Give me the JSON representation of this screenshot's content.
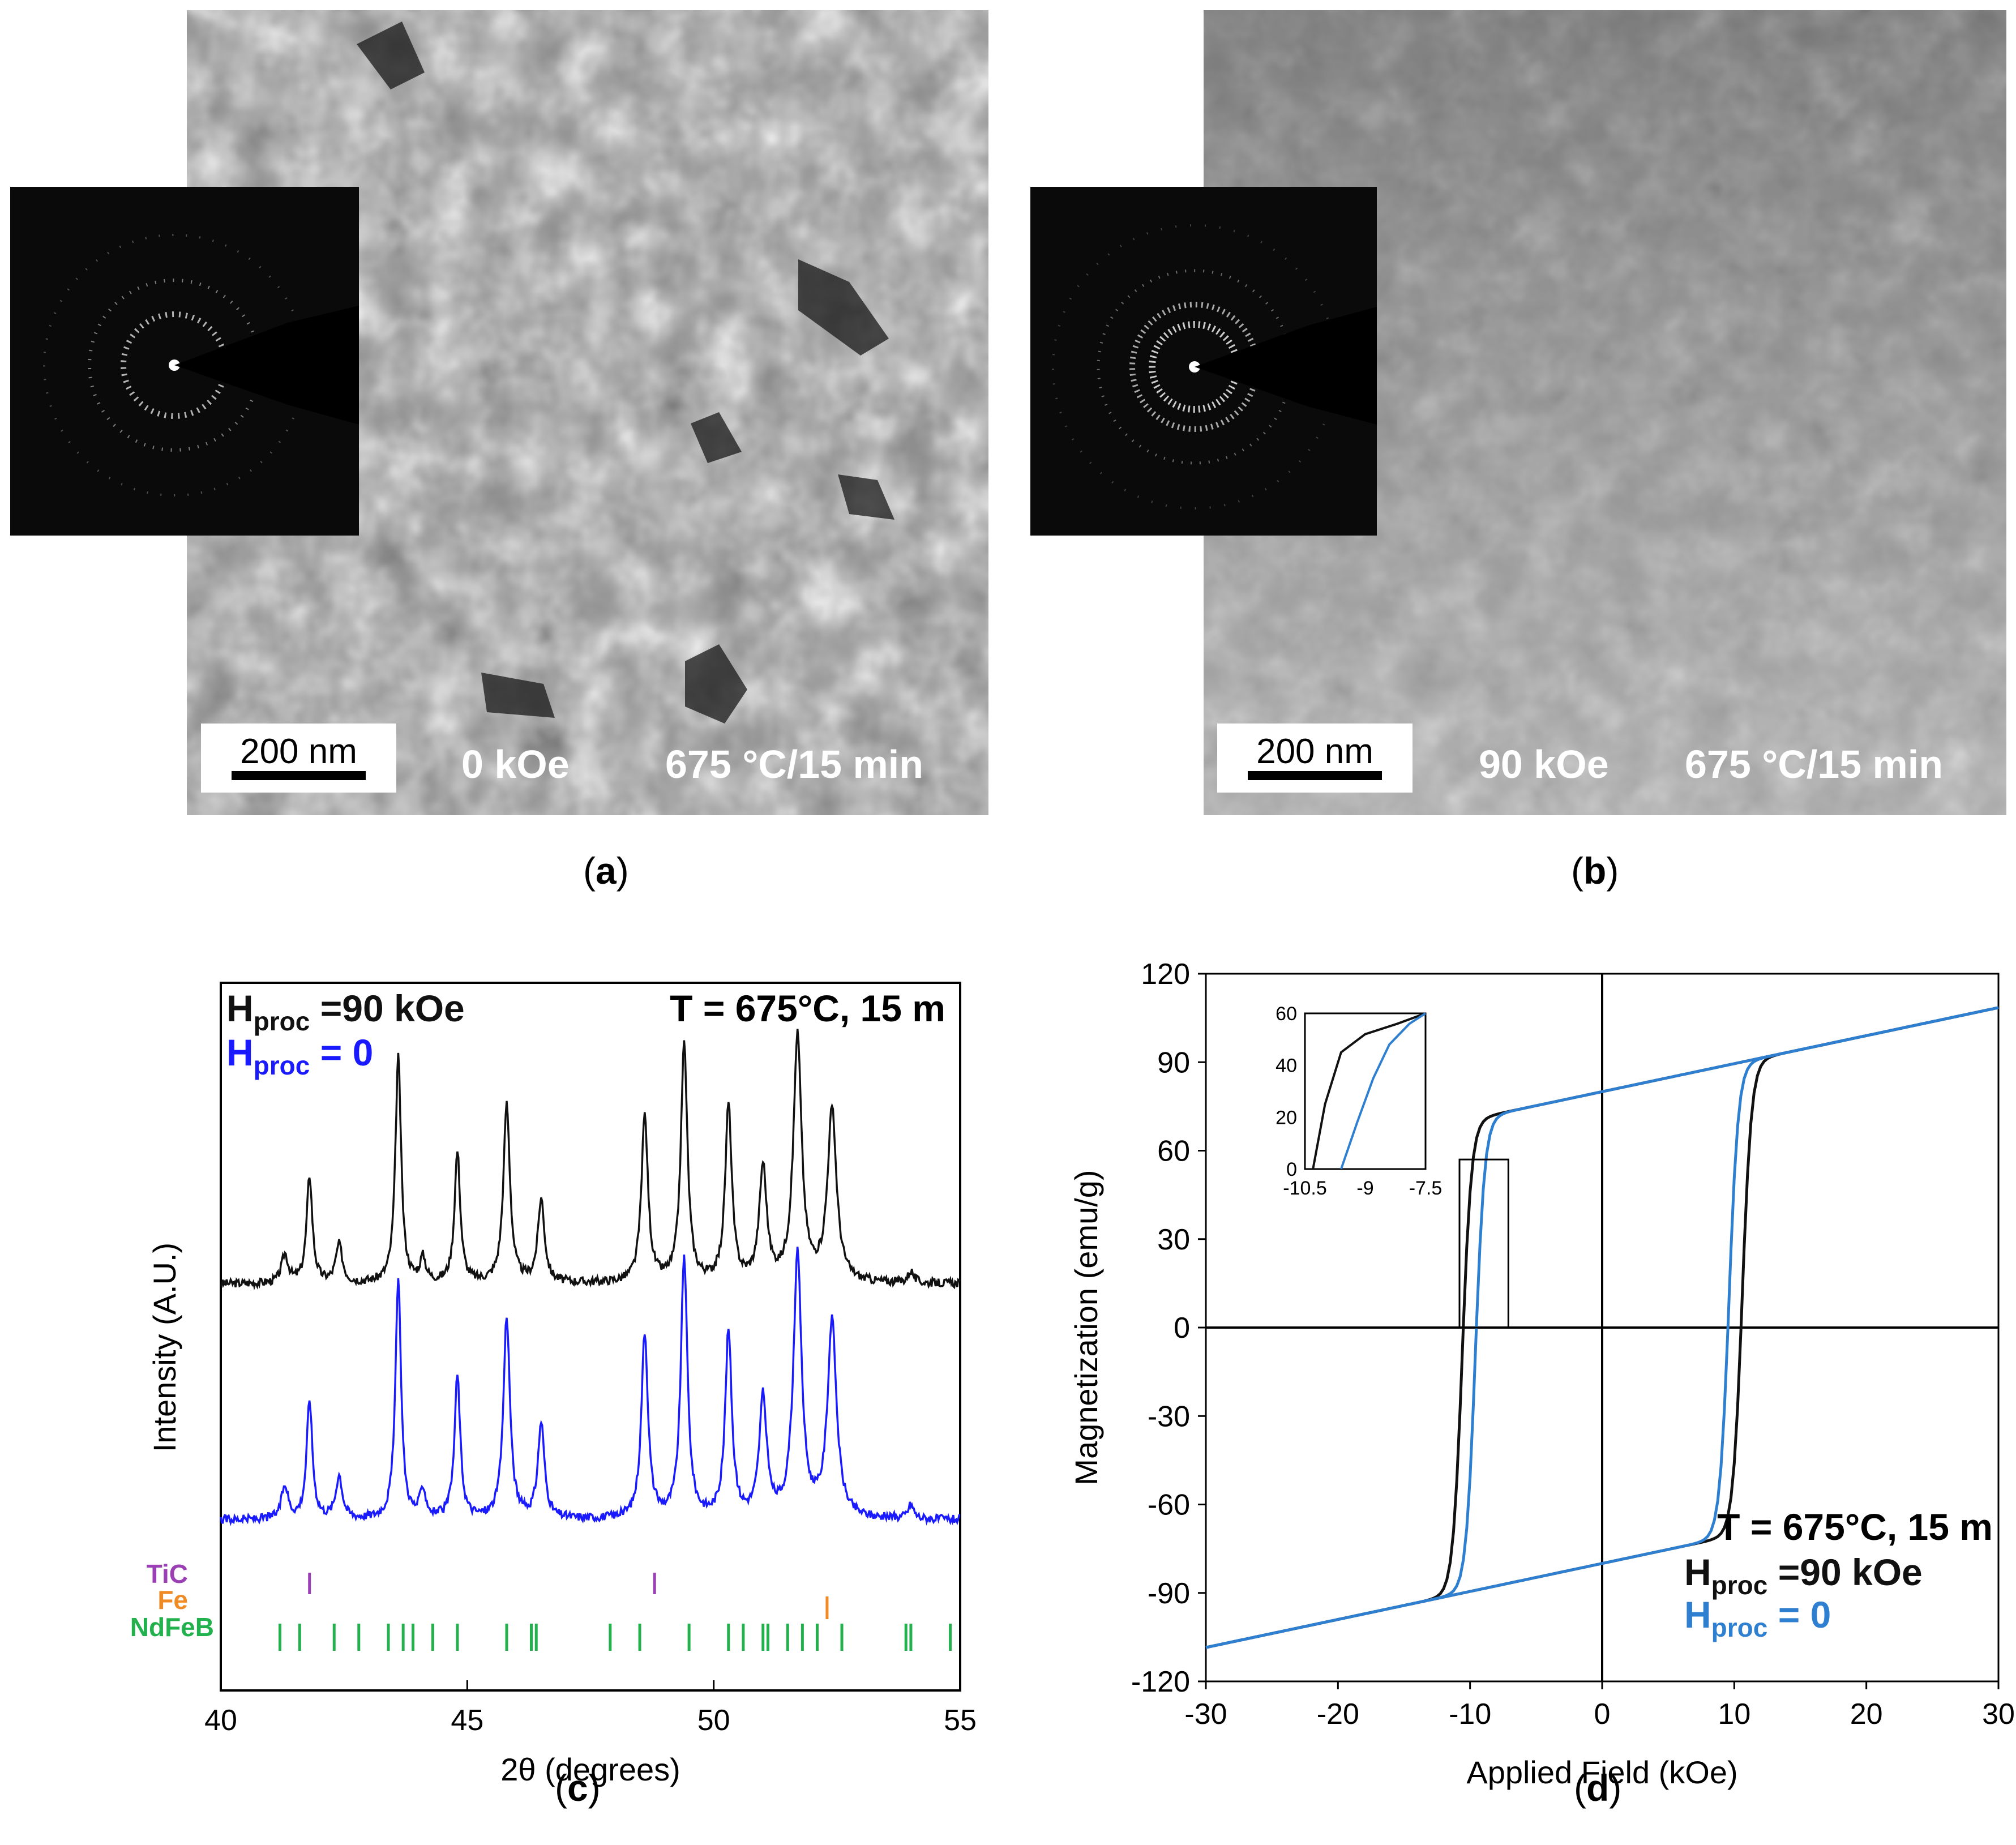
{
  "panel_labels": {
    "a": "a",
    "b": "b",
    "c": "c",
    "d": "d"
  },
  "panel_a": {
    "scale_bar": "200 nm",
    "field": "0 kOe",
    "treatment": "675 °C/15 min"
  },
  "panel_b": {
    "scale_bar": "200 nm",
    "field": "90 kOe",
    "treatment": "675 °C/15 min"
  },
  "colors": {
    "black_series": "#111111",
    "blue_series": "#1a1aff",
    "blue_loop": "#2f7fd0",
    "tic": "#9b3fb5",
    "fe": "#f08a24",
    "ndfeb": "#22b14c"
  },
  "chart_data": [
    {
      "type": "line",
      "title": "",
      "xlabel": "2θ (degrees)",
      "ylabel": "Intensity (A.U.)",
      "xlim": [
        40,
        55
      ],
      "xticks": [
        "40",
        "45",
        "50",
        "55"
      ],
      "annotation": "T = 675°C, 15 m",
      "legend": [
        {
          "main": "H",
          "sub": "proc",
          "rest": " =90 kOe"
        },
        {
          "main": "H",
          "sub": "proc",
          "rest": " = 0"
        }
      ],
      "series": [
        {
          "name": "Hproc =90 kOe",
          "offset": 1.0,
          "peaks": [
            [
              41.3,
              0.12,
              0.08
            ],
            [
              41.8,
              0.45,
              0.07
            ],
            [
              42.4,
              0.16,
              0.08
            ],
            [
              43.6,
              0.95,
              0.07
            ],
            [
              44.1,
              0.1,
              0.07
            ],
            [
              44.8,
              0.55,
              0.07
            ],
            [
              45.8,
              0.75,
              0.08
            ],
            [
              46.5,
              0.35,
              0.08
            ],
            [
              48.6,
              0.7,
              0.08
            ],
            [
              49.4,
              1.0,
              0.08
            ],
            [
              50.3,
              0.74,
              0.08
            ],
            [
              51.0,
              0.48,
              0.09
            ],
            [
              51.7,
              1.03,
              0.1
            ],
            [
              52.4,
              0.72,
              0.11
            ],
            [
              54.0,
              0.05,
              0.07
            ]
          ]
        },
        {
          "name": "Hproc = 0",
          "offset": 0.0,
          "peaks": [
            [
              41.3,
              0.14,
              0.08
            ],
            [
              41.8,
              0.5,
              0.07
            ],
            [
              42.4,
              0.18,
              0.08
            ],
            [
              43.6,
              1.0,
              0.07
            ],
            [
              44.1,
              0.12,
              0.07
            ],
            [
              44.8,
              0.6,
              0.07
            ],
            [
              45.8,
              0.85,
              0.08
            ],
            [
              46.5,
              0.4,
              0.08
            ],
            [
              48.6,
              0.78,
              0.08
            ],
            [
              49.4,
              1.1,
              0.08
            ],
            [
              50.3,
              0.78,
              0.08
            ],
            [
              51.0,
              0.5,
              0.09
            ],
            [
              51.7,
              1.1,
              0.1
            ],
            [
              52.4,
              0.82,
              0.11
            ],
            [
              54.0,
              0.06,
              0.07
            ]
          ]
        }
      ],
      "phase_ticks": [
        {
          "label": "TiC",
          "positions": [
            41.8,
            48.8
          ]
        },
        {
          "label": "Fe",
          "positions": [
            52.3
          ]
        },
        {
          "label": "NdFeB",
          "positions": [
            41.2,
            41.6,
            42.3,
            42.8,
            43.4,
            43.7,
            43.9,
            44.3,
            44.8,
            45.8,
            46.3,
            46.4,
            47.9,
            48.5,
            49.5,
            50.3,
            50.6,
            51.0,
            51.1,
            51.5,
            51.8,
            52.1,
            52.6,
            53.9,
            54.0,
            54.8
          ]
        }
      ]
    },
    {
      "type": "line",
      "title": "",
      "xlabel": "Applied Field (kOe)",
      "ylabel": "Magnetization (emu/g)",
      "xlim": [
        -30,
        30
      ],
      "ylim": [
        -120,
        120
      ],
      "xticks": [
        "-30",
        "-20",
        "-10",
        "0",
        "10",
        "20",
        "30"
      ],
      "yticks": [
        "120",
        "90",
        "60",
        "30",
        "0",
        "-30",
        "-60",
        "-90",
        "-120"
      ],
      "annotation": "T = 675°C, 15 m",
      "legend": [
        {
          "main": "H",
          "sub": "proc",
          "rest": " =90 kOe"
        },
        {
          "main": "H",
          "sub": "proc",
          "rest": " = 0"
        }
      ],
      "series": [
        {
          "name": "Hproc =90 kOe",
          "coercivity": 10.6,
          "ms": 117,
          "mr": 80
        },
        {
          "name": "Hproc = 0",
          "coercivity": 9.6,
          "ms": 117,
          "mr": 80
        }
      ],
      "inset": {
        "xlim": [
          -10.5,
          -7.5
        ],
        "ylim": [
          0,
          60
        ],
        "xticks": [
          "-10.5",
          "-9",
          "-7.5"
        ],
        "yticks": [
          "60",
          "40",
          "20",
          "0"
        ]
      }
    }
  ]
}
